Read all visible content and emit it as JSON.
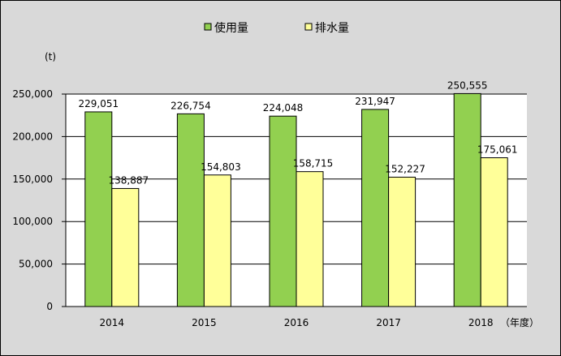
{
  "chart_data": {
    "type": "bar",
    "categories": [
      "2014",
      "2015",
      "2016",
      "2017",
      "2018"
    ],
    "series": [
      {
        "name": "使用量",
        "color": "#92d050",
        "values": [
          229051,
          226754,
          224048,
          231947,
          250555
        ]
      },
      {
        "name": "排水量",
        "color": "#ffff99",
        "values": [
          138887,
          154803,
          158715,
          152227,
          175061
        ]
      }
    ],
    "value_labels": [
      [
        "229,051",
        "226,754",
        "224,048",
        "231,947",
        "250,555"
      ],
      [
        "138,887",
        "154,803",
        "158,715",
        "152,227",
        "175,061"
      ]
    ],
    "y_unit": "(t)",
    "x_unit": "（年度）",
    "ylim": [
      0,
      250000
    ],
    "yticks": [
      0,
      50000,
      100000,
      150000,
      200000,
      250000
    ],
    "ytick_labels": [
      "0",
      "50,000",
      "100,000",
      "150,000",
      "200,000",
      "250,000"
    ],
    "grid": true,
    "legend_position": "top",
    "colors": {
      "background": "#d9d9d9",
      "plot_area": "#ffffff",
      "gridline": "#000000"
    }
  }
}
